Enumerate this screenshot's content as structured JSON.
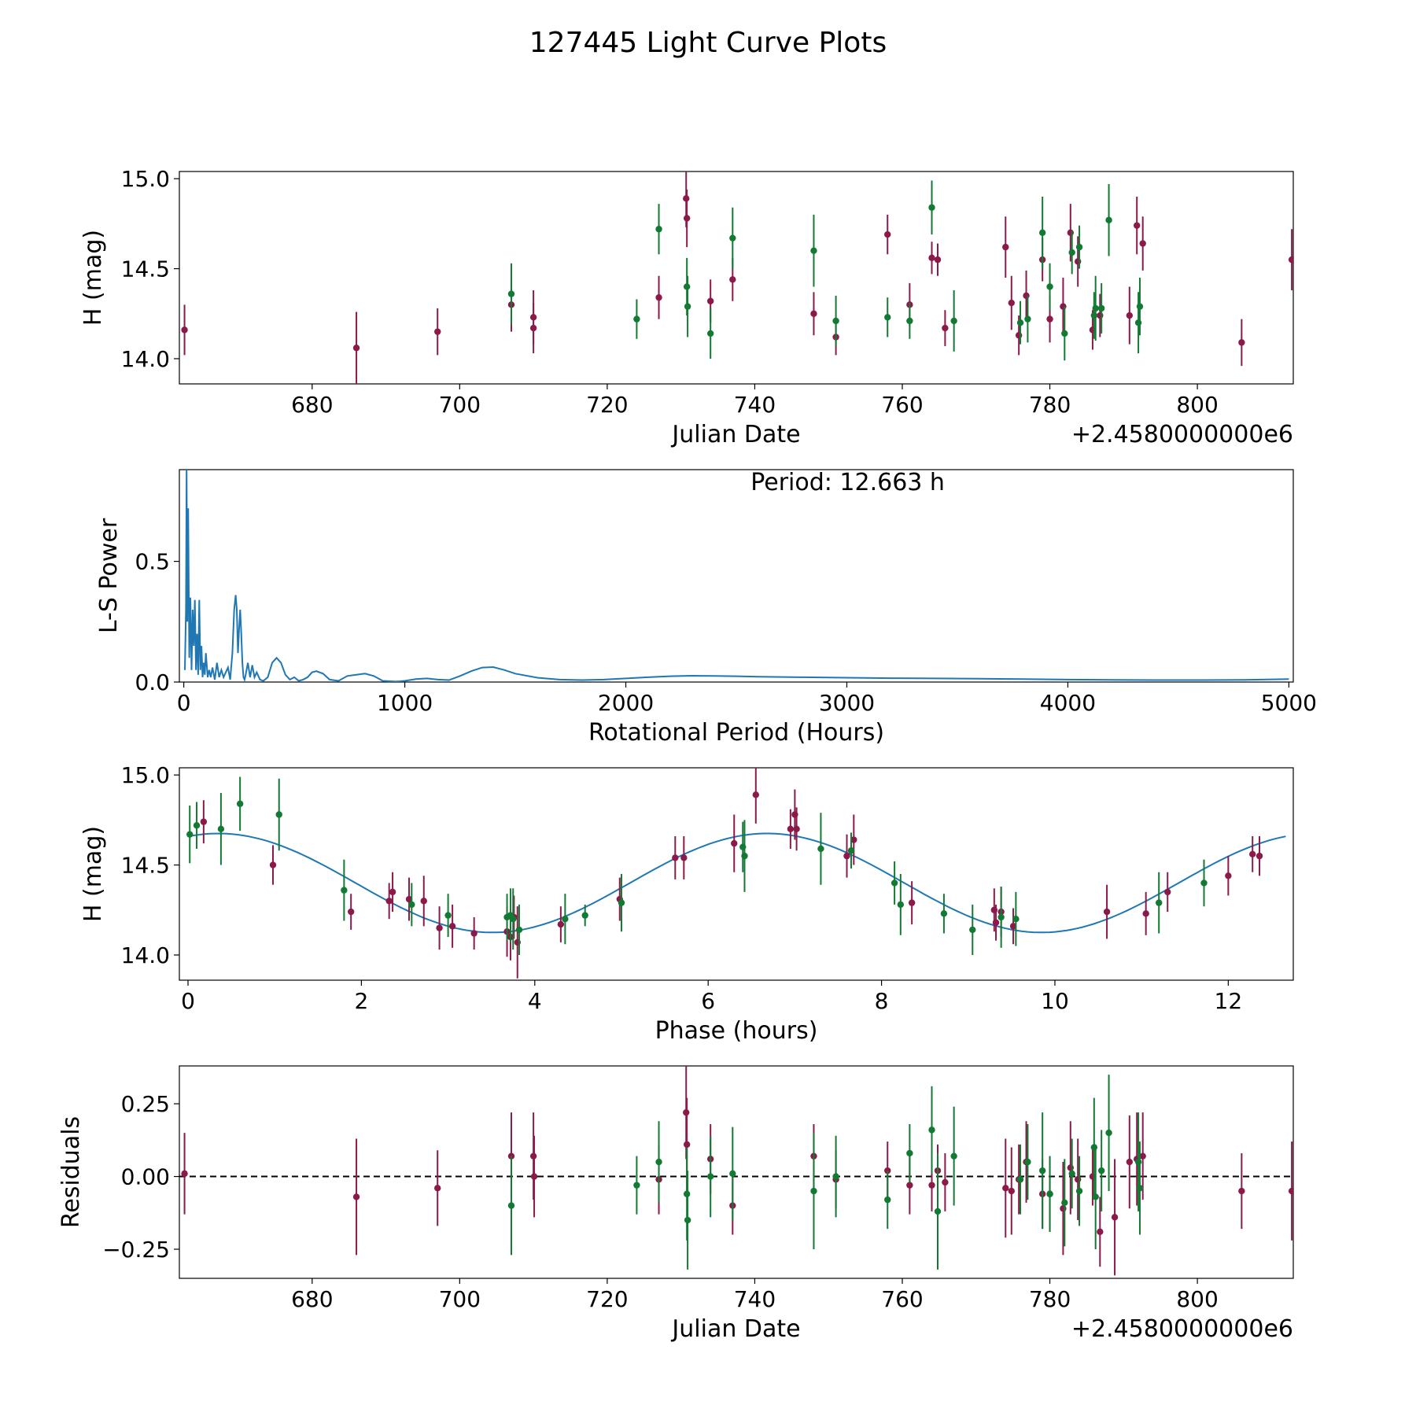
{
  "page": {
    "suptitle": "127445 Light Curve Plots"
  },
  "colors": {
    "magenta": "#8B1A4A",
    "green": "#137A34",
    "line": "#1f77b4",
    "axis": "#000000"
  },
  "chart_data": [
    {
      "type": "scatter",
      "title": "",
      "xlabel": "Julian Date",
      "ylabel": "H (mag)",
      "x_offset_label": "+2.4580000000e6",
      "xlim": [
        662,
        813
      ],
      "ylim": [
        13.86,
        15.04
      ],
      "xticks": [
        680,
        700,
        720,
        740,
        760,
        780,
        800
      ],
      "xtick_labels": [
        "680",
        "700",
        "720",
        "740",
        "760",
        "780",
        "800"
      ],
      "yticks": [
        14.0,
        14.5,
        15.0
      ],
      "ytick_labels": [
        "14.0",
        "14.5",
        "15.0"
      ],
      "series": [
        {
          "name": "magenta",
          "color": "#8B1A4A",
          "x": [
            662.7,
            686.0,
            697.0,
            707.0,
            710.0,
            710.0,
            727.0,
            730.7,
            730.8,
            734.0,
            737.0,
            748.0,
            751.0,
            758.0,
            761.0,
            764.0,
            764.8,
            765.8,
            774.0,
            774.8,
            775.8,
            776.8,
            779.0,
            780.0,
            781.8,
            782.8,
            783.8,
            785.8,
            786.8,
            790.8,
            791.8,
            792.6,
            806.0,
            812.8
          ],
          "y": [
            14.16,
            14.06,
            14.15,
            14.3,
            14.23,
            14.17,
            14.34,
            14.89,
            14.78,
            14.32,
            14.44,
            14.25,
            14.12,
            14.69,
            14.3,
            14.56,
            14.55,
            14.17,
            14.62,
            14.31,
            14.13,
            14.35,
            14.55,
            14.22,
            14.29,
            14.7,
            14.54,
            14.16,
            14.24,
            14.24,
            14.74,
            14.64,
            14.09,
            14.55
          ],
          "err": [
            0.14,
            0.2,
            0.13,
            0.15,
            0.15,
            0.14,
            0.12,
            0.16,
            0.16,
            0.12,
            0.12,
            0.12,
            0.1,
            0.11,
            0.12,
            0.09,
            0.09,
            0.1,
            0.17,
            0.15,
            0.11,
            0.14,
            0.12,
            0.13,
            0.16,
            0.16,
            0.14,
            0.11,
            0.12,
            0.16,
            0.16,
            0.15,
            0.13,
            0.17
          ]
        },
        {
          "name": "green",
          "color": "#137A34",
          "x": [
            707.0,
            724.0,
            727.0,
            730.8,
            730.9,
            734.0,
            737.0,
            748.0,
            751.0,
            758.0,
            761.0,
            764.0,
            767.0,
            776.0,
            777.0,
            779.0,
            780.0,
            782.0,
            783.0,
            784.0,
            786.0,
            786.2,
            787.0,
            788.0,
            792.0,
            792.2
          ],
          "y": [
            14.36,
            14.22,
            14.72,
            14.4,
            14.29,
            14.14,
            14.67,
            14.6,
            14.21,
            14.23,
            14.21,
            14.84,
            14.21,
            14.2,
            14.22,
            14.7,
            14.4,
            14.14,
            14.59,
            14.62,
            14.24,
            14.28,
            14.28,
            14.77,
            14.2,
            14.29
          ],
          "err": [
            0.17,
            0.11,
            0.14,
            0.16,
            0.17,
            0.14,
            0.17,
            0.2,
            0.14,
            0.11,
            0.1,
            0.15,
            0.17,
            0.12,
            0.13,
            0.2,
            0.13,
            0.15,
            0.12,
            0.12,
            0.13,
            0.18,
            0.14,
            0.2,
            0.17,
            0.16
          ]
        }
      ]
    },
    {
      "type": "line",
      "title": "",
      "xlabel": "Rotational Period (Hours)",
      "ylabel": "L-S Power",
      "annotation": "Period: 12.663 h",
      "xlim": [
        -20,
        5020
      ],
      "ylim": [
        0,
        0.88
      ],
      "xticks": [
        0,
        1000,
        2000,
        3000,
        4000,
        5000
      ],
      "xtick_labels": [
        "0",
        "1000",
        "2000",
        "3000",
        "4000",
        "5000"
      ],
      "yticks": [
        0.0,
        0.5
      ],
      "ytick_labels": [
        "0.0",
        "0.5"
      ],
      "series": [
        {
          "name": "L-S Power",
          "x": [
            5,
            10,
            12.663,
            16,
            20,
            25,
            30,
            35,
            40,
            45,
            50,
            55,
            60,
            65,
            70,
            75,
            80,
            85,
            90,
            95,
            100,
            108,
            115,
            122,
            130,
            140,
            150,
            160,
            170,
            180,
            190,
            200,
            210,
            220,
            228,
            235,
            240,
            245,
            250,
            255,
            260,
            265,
            270,
            275,
            280,
            290,
            300,
            310,
            320,
            330,
            345,
            360,
            380,
            400,
            420,
            440,
            460,
            480,
            500,
            520,
            540,
            560,
            580,
            600,
            630,
            660,
            700,
            740,
            780,
            820,
            860,
            900,
            960,
            1000,
            1050,
            1100,
            1150,
            1200,
            1250,
            1300,
            1350,
            1400,
            1450,
            1500,
            1600,
            1700,
            1800,
            1900,
            2000,
            2100,
            2200,
            2300,
            2400,
            2500,
            2600,
            2800,
            3000,
            3200,
            3400,
            3600,
            3800,
            4000,
            4200,
            4400,
            4600,
            4800,
            5000
          ],
          "y": [
            0.05,
            0.3,
            0.88,
            0.25,
            0.72,
            0.1,
            0.35,
            0.05,
            0.3,
            0.15,
            0.34,
            0.05,
            0.2,
            0.03,
            0.34,
            0.05,
            0.15,
            0.02,
            0.08,
            0.03,
            0.12,
            0.02,
            0.05,
            0.02,
            0.06,
            0.01,
            0.08,
            0.02,
            0.05,
            0.02,
            0.04,
            0.06,
            0.01,
            0.12,
            0.3,
            0.36,
            0.3,
            0.12,
            0.22,
            0.3,
            0.2,
            0.08,
            0.02,
            0.01,
            0.03,
            0.08,
            0.02,
            0.07,
            0.02,
            0.04,
            0.01,
            0.005,
            0.02,
            0.08,
            0.1,
            0.08,
            0.03,
            0.01,
            0.02,
            0.005,
            0.01,
            0.02,
            0.04,
            0.045,
            0.035,
            0.01,
            0.005,
            0.025,
            0.03,
            0.035,
            0.025,
            0.005,
            0.002,
            0.005,
            0.012,
            0.015,
            0.01,
            0.008,
            0.025,
            0.045,
            0.06,
            0.062,
            0.05,
            0.035,
            0.018,
            0.01,
            0.008,
            0.01,
            0.015,
            0.02,
            0.024,
            0.026,
            0.025,
            0.024,
            0.022,
            0.02,
            0.018,
            0.016,
            0.015,
            0.014,
            0.012,
            0.01,
            0.009,
            0.008,
            0.008,
            0.009,
            0.012
          ]
        }
      ]
    },
    {
      "type": "scatter",
      "title": "",
      "xlabel": "Phase (hours)",
      "ylabel": "H (mag)",
      "xlim": [
        -0.1,
        12.75
      ],
      "ylim": [
        13.86,
        15.04
      ],
      "xticks": [
        0,
        2,
        4,
        6,
        8,
        10,
        12
      ],
      "xtick_labels": [
        "0",
        "2",
        "4",
        "6",
        "8",
        "10",
        "12"
      ],
      "yticks": [
        14.0,
        14.5,
        15.0
      ],
      "ytick_labels": [
        "14.0",
        "14.5",
        "15.0"
      ],
      "fit": {
        "name": "sinusoid fit",
        "mean": 14.4,
        "amplitude": 0.275,
        "period": 6.33,
        "phase_peak": 0.35,
        "x_range": [
          0,
          12.663
        ]
      },
      "series": [
        {
          "name": "magenta",
          "color": "#8B1A4A",
          "x": [
            0.18,
            0.98,
            1.88,
            2.32,
            2.36,
            2.55,
            2.72,
            2.9,
            3.05,
            3.3,
            3.68,
            3.72,
            3.76,
            3.8,
            4.3,
            4.98,
            5.62,
            5.72,
            6.3,
            6.55,
            6.95,
            7.0,
            7.02,
            7.6,
            7.68,
            8.35,
            9.3,
            9.32,
            9.38,
            9.52,
            10.6,
            11.05,
            11.3,
            12.0,
            12.28,
            12.36
          ],
          "y": [
            14.74,
            14.5,
            14.24,
            14.3,
            14.35,
            14.31,
            14.3,
            14.15,
            14.16,
            14.12,
            14.13,
            14.1,
            14.21,
            14.07,
            14.17,
            14.31,
            14.54,
            14.54,
            14.62,
            14.89,
            14.7,
            14.78,
            14.7,
            14.55,
            14.64,
            14.29,
            14.25,
            14.18,
            14.24,
            14.16,
            14.24,
            14.23,
            14.35,
            14.44,
            14.56,
            14.55
          ],
          "err": [
            0.12,
            0.11,
            0.1,
            0.1,
            0.11,
            0.12,
            0.14,
            0.12,
            0.12,
            0.09,
            0.14,
            0.13,
            0.12,
            0.2,
            0.1,
            0.12,
            0.12,
            0.12,
            0.16,
            0.16,
            0.11,
            0.14,
            0.12,
            0.12,
            0.14,
            0.12,
            0.12,
            0.1,
            0.14,
            0.1,
            0.15,
            0.12,
            0.11,
            0.11,
            0.1,
            0.11
          ]
        },
        {
          "name": "green",
          "color": "#137A34",
          "x": [
            0.02,
            0.1,
            0.38,
            0.6,
            1.05,
            1.8,
            2.58,
            3.0,
            3.68,
            3.72,
            3.75,
            3.82,
            4.35,
            4.58,
            5.0,
            6.4,
            6.42,
            7.3,
            7.65,
            8.15,
            8.22,
            8.72,
            9.05,
            9.38,
            9.55,
            11.2,
            11.72
          ],
          "y": [
            14.67,
            14.72,
            14.7,
            14.84,
            14.78,
            14.36,
            14.28,
            14.22,
            14.21,
            14.22,
            14.2,
            14.14,
            14.2,
            14.22,
            14.29,
            14.6,
            14.55,
            14.59,
            14.58,
            14.4,
            14.28,
            14.23,
            14.14,
            14.21,
            14.2,
            14.29,
            14.4
          ],
          "err": [
            0.16,
            0.13,
            0.2,
            0.15,
            0.2,
            0.17,
            0.12,
            0.12,
            0.13,
            0.15,
            0.17,
            0.14,
            0.14,
            0.06,
            0.16,
            0.14,
            0.2,
            0.2,
            0.1,
            0.12,
            0.17,
            0.11,
            0.14,
            0.17,
            0.15,
            0.17,
            0.13
          ]
        }
      ]
    },
    {
      "type": "scatter",
      "title": "",
      "xlabel": "Julian Date",
      "ylabel": "Residuals",
      "x_offset_label": "+2.4580000000e6",
      "xlim": [
        662,
        813
      ],
      "ylim": [
        -0.35,
        0.38
      ],
      "xticks": [
        680,
        700,
        720,
        740,
        760,
        780,
        800
      ],
      "xtick_labels": [
        "680",
        "700",
        "720",
        "740",
        "760",
        "780",
        "800"
      ],
      "yticks": [
        -0.25,
        0.0,
        0.25
      ],
      "ytick_labels": [
        "−0.25",
        "0.00",
        "0.25"
      ],
      "reference_line": 0,
      "series": [
        {
          "name": "magenta",
          "color": "#8B1A4A",
          "x": [
            662.7,
            686.0,
            697.0,
            707.0,
            710.0,
            710.1,
            727.0,
            730.7,
            730.8,
            734.0,
            737.0,
            748.0,
            751.0,
            758.0,
            761.0,
            764.0,
            764.8,
            765.8,
            774.0,
            774.8,
            775.8,
            776.8,
            779.0,
            780.0,
            781.8,
            782.8,
            783.8,
            785.8,
            786.8,
            788.8,
            790.8,
            791.8,
            792.6,
            806.0,
            812.8
          ],
          "y": [
            0.01,
            -0.07,
            -0.04,
            0.07,
            0.07,
            0.0,
            -0.01,
            0.22,
            0.11,
            0.06,
            -0.1,
            0.07,
            -0.01,
            0.02,
            -0.03,
            -0.03,
            0.02,
            -0.02,
            -0.04,
            -0.05,
            -0.01,
            0.05,
            -0.06,
            -0.06,
            -0.11,
            0.03,
            -0.01,
            0.0,
            -0.19,
            -0.14,
            0.05,
            0.06,
            0.07,
            -0.05,
            -0.05
          ],
          "err": [
            0.14,
            0.2,
            0.13,
            0.15,
            0.15,
            0.14,
            0.12,
            0.16,
            0.16,
            0.12,
            0.1,
            0.11,
            0.1,
            0.1,
            0.1,
            0.09,
            0.09,
            0.1,
            0.17,
            0.15,
            0.12,
            0.14,
            0.12,
            0.13,
            0.16,
            0.16,
            0.14,
            0.1,
            0.12,
            0.2,
            0.16,
            0.16,
            0.15,
            0.13,
            0.17
          ]
        },
        {
          "name": "green",
          "color": "#137A34",
          "x": [
            707.0,
            724.0,
            727.0,
            730.8,
            730.9,
            734.0,
            737.0,
            748.0,
            751.0,
            758.0,
            761.0,
            764.0,
            764.8,
            767.0,
            776.0,
            777.0,
            779.0,
            780.0,
            782.0,
            783.0,
            784.0,
            786.0,
            786.2,
            787.0,
            788.0,
            792.0,
            792.2
          ],
          "y": [
            -0.1,
            -0.03,
            0.05,
            -0.06,
            -0.15,
            0.0,
            0.01,
            -0.05,
            0.0,
            -0.08,
            0.08,
            0.16,
            -0.12,
            0.07,
            -0.01,
            0.05,
            0.02,
            -0.06,
            -0.09,
            0.01,
            -0.05,
            0.1,
            -0.07,
            0.02,
            0.15,
            0.05,
            -0.04
          ],
          "err": [
            0.17,
            0.1,
            0.14,
            0.16,
            0.17,
            0.14,
            0.16,
            0.2,
            0.14,
            0.1,
            0.1,
            0.15,
            0.2,
            0.17,
            0.12,
            0.13,
            0.2,
            0.13,
            0.15,
            0.12,
            0.12,
            0.17,
            0.18,
            0.14,
            0.2,
            0.17,
            0.16
          ]
        }
      ]
    }
  ]
}
